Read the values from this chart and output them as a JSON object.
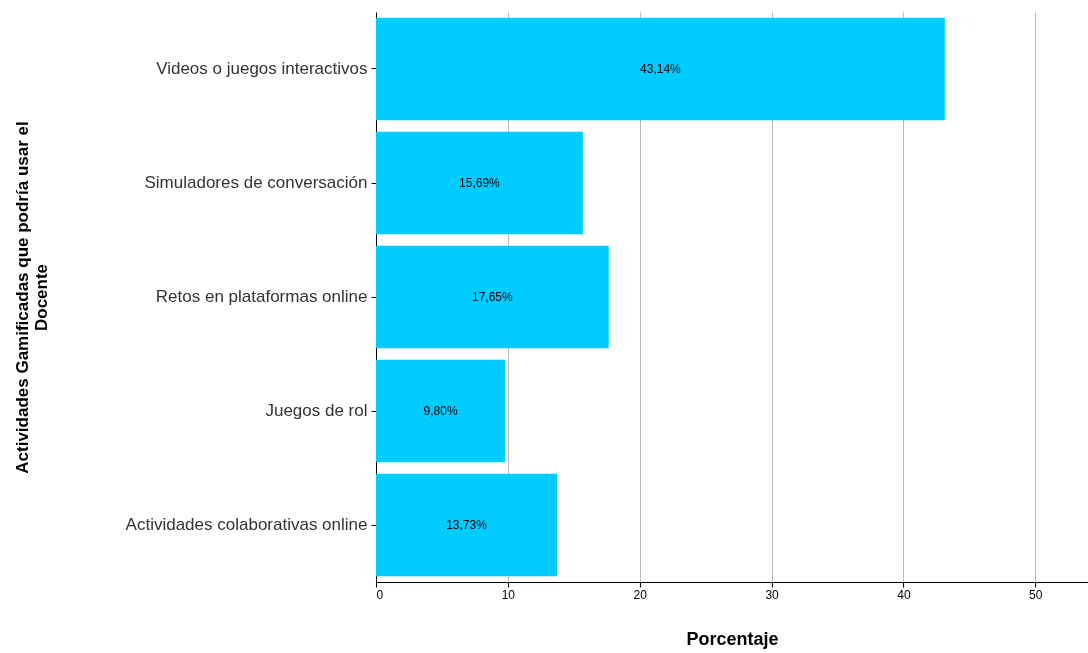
{
  "chart_data": {
    "type": "bar",
    "orientation": "horizontal",
    "xlabel": "Porcentaje",
    "ylabel": "Actividades Gamificadas que podría usar el Docente",
    "categories": [
      "Videos o juegos interactivos",
      "Simuladores de conversación",
      "Retos en plataformas online",
      "Juegos de rol",
      "Actividades colaborativas online"
    ],
    "values": [
      43.14,
      15.69,
      17.65,
      9.8,
      13.73
    ],
    "value_labels": [
      "43,14%",
      "15,69%",
      "17,65%",
      "9,80%",
      "13,73%"
    ],
    "color": "#00ccff",
    "xlim": [
      0,
      54
    ],
    "xticks": [
      0,
      10,
      20,
      30,
      40,
      50
    ],
    "grid": "x"
  }
}
